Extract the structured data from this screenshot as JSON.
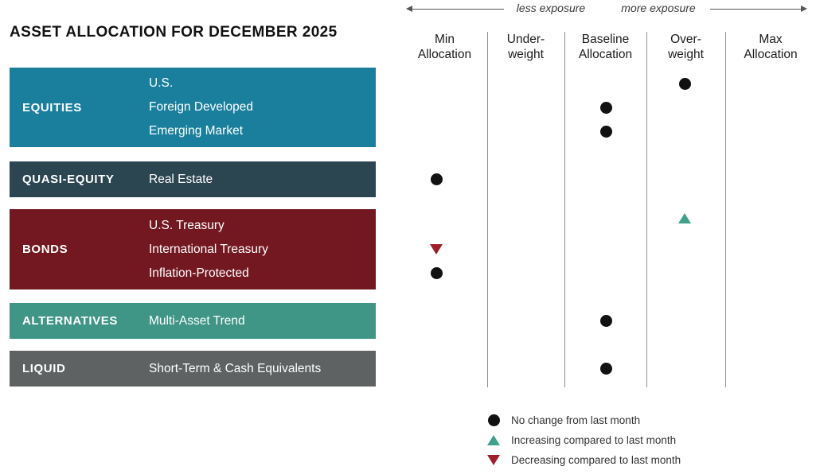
{
  "title": "ASSET ALLOCATION FOR DECEMBER 2025",
  "exposure_arrows": {
    "less": "less exposure",
    "more": "more exposure"
  },
  "chart_data": {
    "type": "scatter",
    "subtype": "allocation-dot-plot",
    "columns": [
      {
        "id": "min-allocation",
        "name": "Min Allocation",
        "label": "Min\nAllocation"
      },
      {
        "id": "under-weight",
        "name": "Under-weight",
        "label": "Under-\nweight"
      },
      {
        "id": "baseline-allocation",
        "name": "Baseline Allocation",
        "label": "Baseline\nAllocation"
      },
      {
        "id": "over-weight",
        "name": "Over-weight",
        "label": "Over-\nweight"
      },
      {
        "id": "max-allocation",
        "name": "Max Allocation",
        "label": "Max\nAllocation"
      }
    ],
    "groups": [
      {
        "category": "EQUITIES",
        "color": "#1a7f9c",
        "assets": [
          {
            "name": "U.S.",
            "position": "Over-weight",
            "col": 3,
            "change": "no-change"
          },
          {
            "name": "Foreign Developed",
            "position": "Baseline Allocation",
            "col": 2,
            "change": "no-change"
          },
          {
            "name": "Emerging Market",
            "position": "Baseline Allocation",
            "col": 2,
            "change": "no-change"
          }
        ]
      },
      {
        "category": "QUASI-EQUITY",
        "color": "#2b4551",
        "assets": [
          {
            "name": "Real Estate",
            "position": "Min Allocation",
            "col": 0,
            "change": "no-change"
          }
        ]
      },
      {
        "category": "BONDS",
        "color": "#731821",
        "assets": [
          {
            "name": "U.S. Treasury",
            "position": "Over-weight",
            "col": 3,
            "change": "increasing"
          },
          {
            "name": "International Treasury",
            "position": "Min Allocation",
            "col": 0,
            "change": "decreasing"
          },
          {
            "name": "Inflation-Protected",
            "position": "Min Allocation",
            "col": 0,
            "change": "no-change"
          }
        ]
      },
      {
        "category": "ALTERNATIVES",
        "color": "#3f9586",
        "assets": [
          {
            "name": "Multi-Asset Trend",
            "position": "Baseline Allocation",
            "col": 2,
            "change": "no-change"
          }
        ]
      },
      {
        "category": "LIQUID",
        "color": "#5e6263",
        "assets": [
          {
            "name": "Short-Term & Cash Equivalents",
            "position": "Baseline Allocation",
            "col": 2,
            "change": "no-change"
          }
        ]
      }
    ],
    "legend": [
      {
        "marker": "dot",
        "change": "no-change",
        "color": "#111111",
        "label": "No change from last month"
      },
      {
        "marker": "triangle-up",
        "change": "increasing",
        "color": "#3fa18c",
        "label": "Increasing compared to last month"
      },
      {
        "marker": "triangle-down",
        "change": "decreasing",
        "color": "#9e1f2a",
        "label": "Decreasing compared to last month"
      }
    ],
    "layout_hints": {
      "grid": "vertical-dividers",
      "legend_position": "bottom-right"
    }
  }
}
